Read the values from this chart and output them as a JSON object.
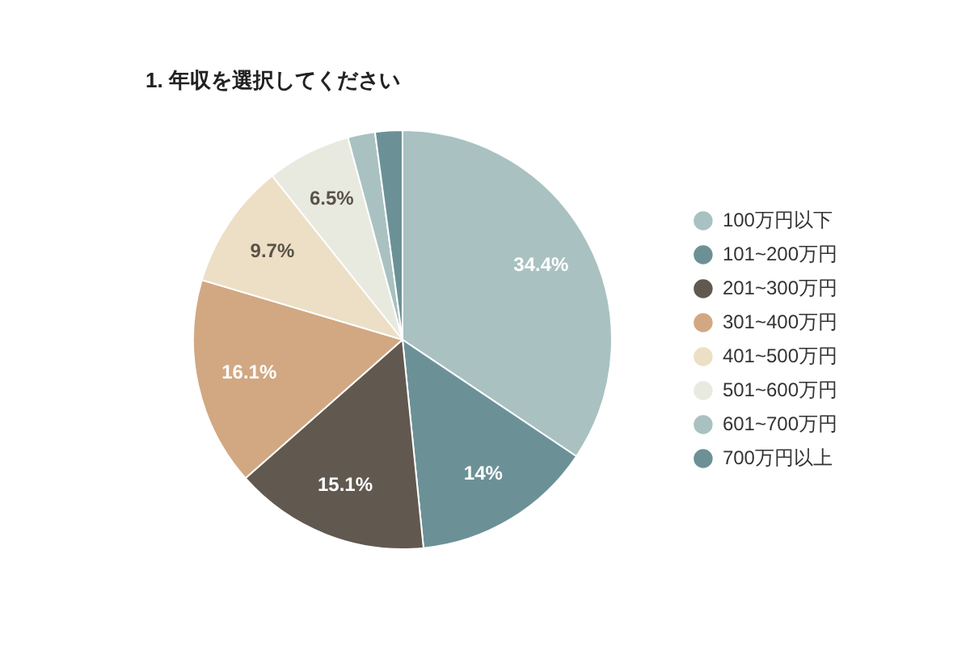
{
  "chart_data": {
    "type": "pie",
    "title": "1. 年収を選択してください",
    "categories": [
      "100万円以下",
      "101~200万円",
      "201~300万円",
      "301~400万円",
      "401~500万円",
      "501~600万円",
      "601~700万円",
      "700万円以上"
    ],
    "values": [
      34.4,
      14,
      15.1,
      16.1,
      9.7,
      6.5,
      2.1,
      2.1
    ],
    "colors": [
      "#a9c1c1",
      "#6b9197",
      "#615850",
      "#d1a882",
      "#ecdfc5",
      "#e8eadf",
      "#a9c1c1",
      "#6b9197"
    ],
    "value_labels": [
      "34.4%",
      "14%",
      "15.1%",
      "16.1%",
      "9.7%",
      "6.5%",
      null,
      null
    ],
    "legend": "right"
  }
}
